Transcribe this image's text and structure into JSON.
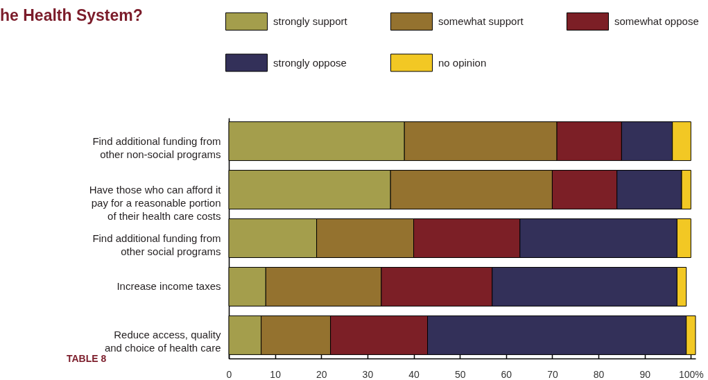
{
  "chart_data": {
    "type": "bar",
    "title": "he Health System?",
    "orientation": "horizontal",
    "stacked": true,
    "categories": [
      "Find additional funding from\nother non-social programs",
      "Have those who can afford it\npay for a reasonable portion\nof their health care costs",
      "Find additional funding from\nother social programs",
      "Increase income taxes",
      "Reduce access, quality\nand choice of health care"
    ],
    "series": [
      {
        "name": "strongly support",
        "color": "#a49e4c",
        "values": [
          38,
          35,
          19,
          8,
          7
        ]
      },
      {
        "name": "somewhat support",
        "color": "#94722f",
        "values": [
          33,
          35,
          21,
          25,
          15
        ]
      },
      {
        "name": "somewhat oppose",
        "color": "#7c1f26",
        "values": [
          14,
          14,
          23,
          24,
          21
        ]
      },
      {
        "name": "strongly oppose",
        "color": "#333059",
        "values": [
          11,
          14,
          34,
          40,
          56
        ]
      },
      {
        "name": "no opinion",
        "color": "#f2c824",
        "values": [
          4,
          2,
          3,
          2,
          2
        ]
      }
    ],
    "xlim": [
      0,
      101
    ],
    "xticks": [
      0,
      10,
      20,
      30,
      40,
      50,
      60,
      70,
      80,
      90,
      {
        "value": 100,
        "label": "100%"
      }
    ],
    "legend": "top",
    "annotations": [
      "TABLE 8"
    ]
  }
}
